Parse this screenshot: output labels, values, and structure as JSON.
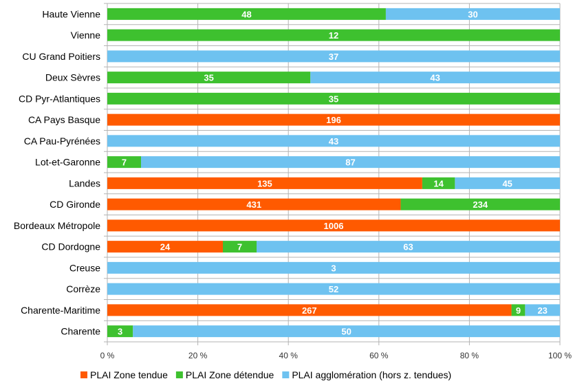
{
  "chart_data": {
    "type": "bar",
    "orientation": "horizontal",
    "stacked": "percent",
    "categories": [
      "Haute Vienne",
      "Vienne",
      "CU Grand Poitiers",
      "Deux Sèvres",
      "CD  Pyr-Atlantiques",
      "CA Pays Basque",
      "CA Pau-Pyrénées",
      "Lot-et-Garonne",
      "Landes",
      "CD Gironde",
      "Bordeaux Métropole",
      "CD Dordogne",
      "Creuse",
      "Corrèze",
      "Charente-Maritime",
      "Charente"
    ],
    "series": [
      {
        "name": "PLAI Zone tendue",
        "color": "#ff5a00",
        "values": [
          0,
          0,
          0,
          0,
          0,
          196,
          0,
          0,
          135,
          431,
          1006,
          24,
          0,
          0,
          267,
          0
        ]
      },
      {
        "name": "PLAI Zone détendue",
        "color": "#3ec12f",
        "values": [
          48,
          12,
          0,
          35,
          35,
          0,
          0,
          7,
          14,
          234,
          0,
          7,
          0,
          0,
          9,
          3
        ]
      },
      {
        "name": "PLAI agglomération (hors z. tendues)",
        "color": "#6ec2f0",
        "values": [
          30,
          0,
          37,
          43,
          0,
          0,
          43,
          87,
          45,
          0,
          0,
          63,
          3,
          52,
          23,
          50
        ]
      }
    ],
    "xticks": [
      "0 %",
      "20 %",
      "40 %",
      "60 %",
      "80 %",
      "100 %"
    ],
    "xlim": [
      0,
      100
    ],
    "grid": true,
    "legend_position": "bottom"
  }
}
